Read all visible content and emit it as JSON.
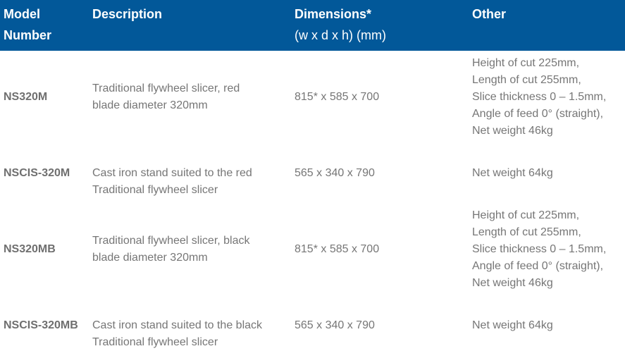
{
  "header": {
    "model": [
      "Model",
      "Number"
    ],
    "description": "Description",
    "dimensions": [
      "Dimensions*",
      "(w x d x h) (mm)"
    ],
    "other": "Other"
  },
  "colors": {
    "header_bg": "#025899",
    "text": "#767676"
  },
  "rows": [
    {
      "model": "NS320M",
      "description": [
        "Traditional flywheel slicer, red",
        "blade diameter 320mm"
      ],
      "dimensions": "815* x 585 x 700",
      "other": [
        "Height of cut 225mm,",
        "Length of cut 255mm,",
        "Slice thickness 0 – 1.5mm,",
        "Angle of feed 0° (straight),",
        "Net weight 46kg"
      ]
    },
    {
      "model": "NSCIS-320M",
      "description": [
        "Cast iron stand suited to the red",
        "Traditional flywheel slicer"
      ],
      "dimensions": "565 x 340 x 790",
      "other": [
        "Net weight 64kg"
      ]
    },
    {
      "model": "NS320MB",
      "description": [
        "Traditional flywheel slicer, black",
        "blade diameter 320mm"
      ],
      "dimensions": "815* x 585 x 700",
      "other": [
        "Height of cut 225mm,",
        "Length of cut 255mm,",
        "Slice thickness 0 – 1.5mm,",
        "Angle of feed 0° (straight),",
        "Net weight 46kg"
      ]
    },
    {
      "model": "NSCIS-320MB",
      "description": [
        "Cast iron stand suited to the black",
        "Traditional flywheel slicer"
      ],
      "dimensions": " 565 x 340 x 790",
      "other": [
        "Net weight 64kg"
      ]
    }
  ]
}
